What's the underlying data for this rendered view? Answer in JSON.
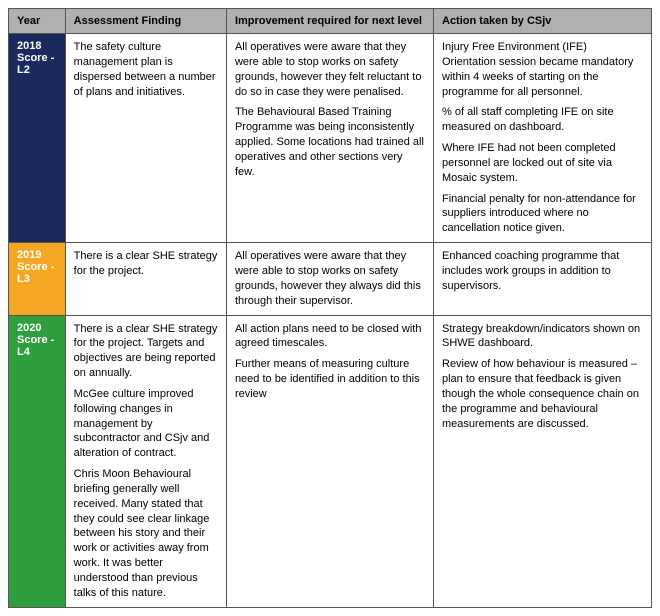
{
  "table": {
    "headers": {
      "year": "Year",
      "finding": "Assessment Finding",
      "improvement": "Improvement required for next level",
      "action": "Action taken by CSjv"
    },
    "rows": [
      {
        "year_label": "2018 Score - L2",
        "year_color": "#1a2a5c",
        "finding": [
          "The safety culture management plan is dispersed between a number of plans and initiatives."
        ],
        "improvement": [
          "All operatives were aware that they were able to stop works on safety grounds, however they felt reluctant to do so in case they were penalised.",
          "The Behavioural Based Training Programme was being inconsistently applied. Some locations had trained all operatives and other sections very few."
        ],
        "action": [
          "Injury Free Environment (IFE) Orientation session became mandatory within 4 weeks of starting on the programme for all personnel.",
          "% of all staff completing IFE on site measured on dashboard.",
          "Where IFE had not been completed personnel are locked out of site via Mosaic system.",
          "Financial penalty for non-attendance for suppliers introduced where no cancellation notice given."
        ]
      },
      {
        "year_label": "2019 Score - L3",
        "year_color": "#f5a623",
        "finding": [
          "There is a clear SHE strategy for the project."
        ],
        "improvement": [
          "All operatives were aware that they were able to stop works on safety grounds, however they always did this through their supervisor."
        ],
        "action": [
          "Enhanced coaching programme that includes work groups in addition to supervisors."
        ]
      },
      {
        "year_label": "2020 Score - L4",
        "year_color": "#2e9e3e",
        "finding": [
          "There is a clear SHE strategy for the project. Targets and objectives are being reported on annually.",
          "McGee culture improved following changes in management by subcontractor and CSjv and alteration of contract.",
          "Chris Moon Behavioural briefing generally well received. Many stated that they could see clear linkage between his story and their work or activities away from work. It was better understood than previous talks of this nature."
        ],
        "improvement": [
          "All action plans need to be closed with agreed timescales.",
          "Further means of measuring culture need to be identified in addition to this review"
        ],
        "action": [
          "Strategy breakdown/indicators shown on SHWE dashboard.",
          "Review of how behaviour is measured – plan to ensure that feedback is given though the whole consequence chain on the programme and behavioural measurements are discussed."
        ]
      }
    ]
  }
}
